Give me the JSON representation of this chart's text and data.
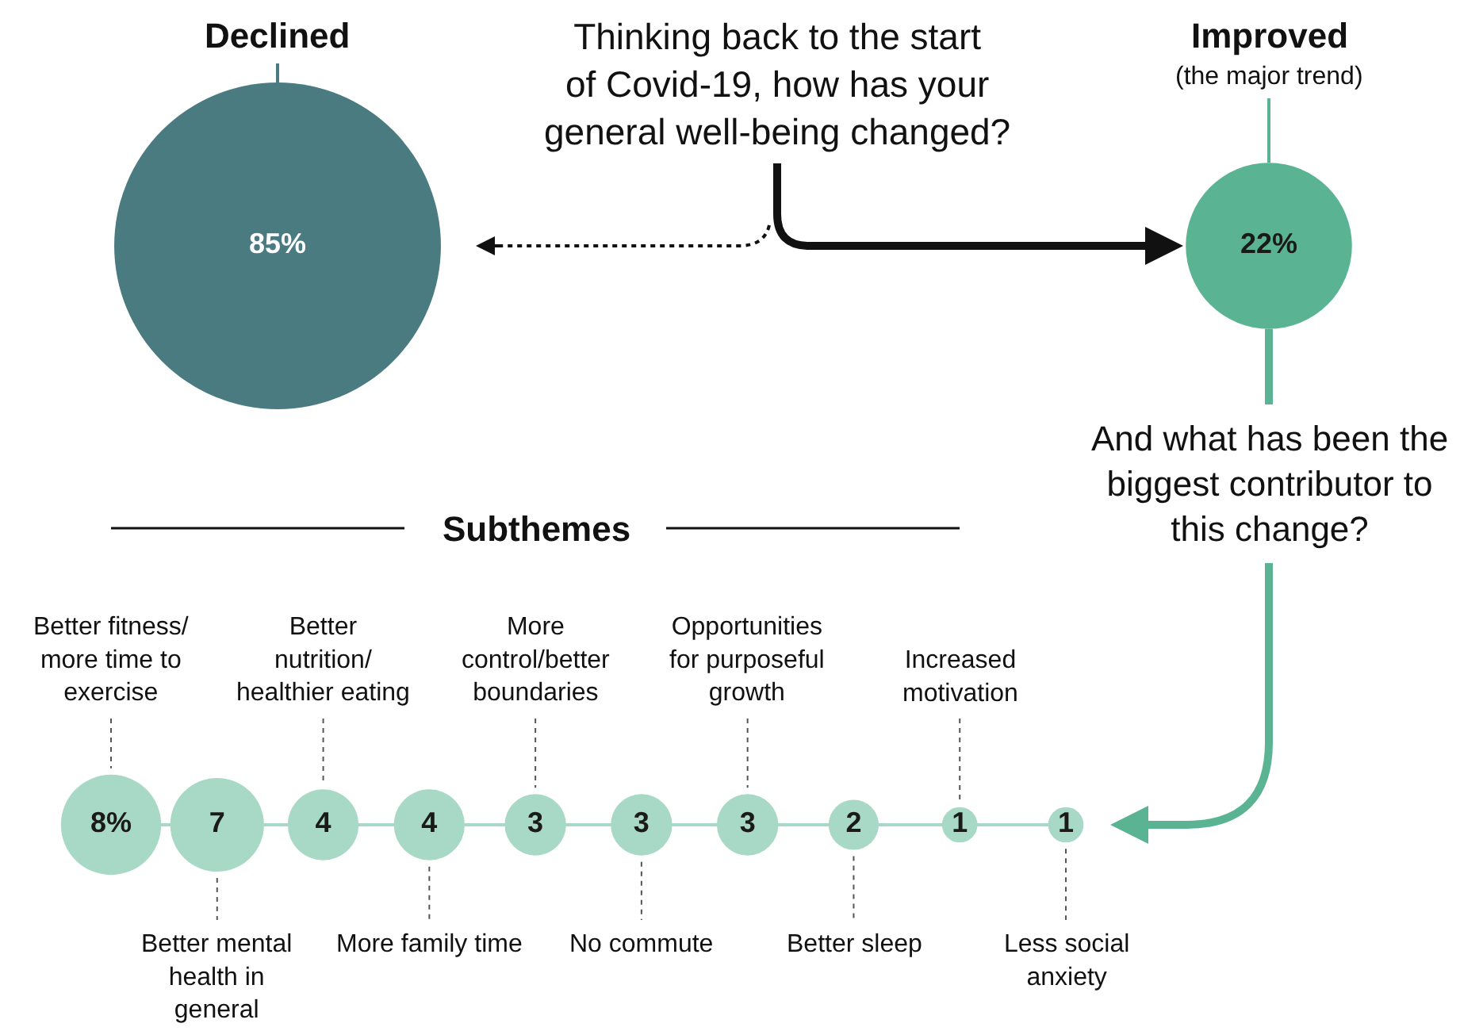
{
  "chart_data": [
    {
      "type": "other",
      "title": "Thinking back to the start of Covid-19, how has your general well-being changed?",
      "categories": [
        "Declined",
        "Improved"
      ],
      "values": [
        85,
        22
      ],
      "value_labels": [
        "85%",
        "22%"
      ],
      "colors": [
        "#4a7b80",
        "#5ab494"
      ],
      "annotations": [
        "(the major trend)",
        "And what has been the biggest contributor to this change?"
      ]
    },
    {
      "type": "other",
      "title": "Subthemes",
      "categories": [
        "Better fitness/ more time to exercise",
        "Better mental health in general",
        "Better nutrition/ healthier eating",
        "More family time",
        "More control/better boundaries",
        "No commute",
        "Opportunities for purposeful growth",
        "Better sleep",
        "Increased motivation",
        "Less social anxiety"
      ],
      "values": [
        8,
        7,
        4,
        4,
        3,
        3,
        3,
        2,
        1,
        1
      ],
      "value_labels": [
        "8%",
        "7",
        "4",
        "4",
        "3",
        "3",
        "3",
        "2",
        "1",
        "1"
      ],
      "color": "#a8d8c6"
    }
  ]
}
